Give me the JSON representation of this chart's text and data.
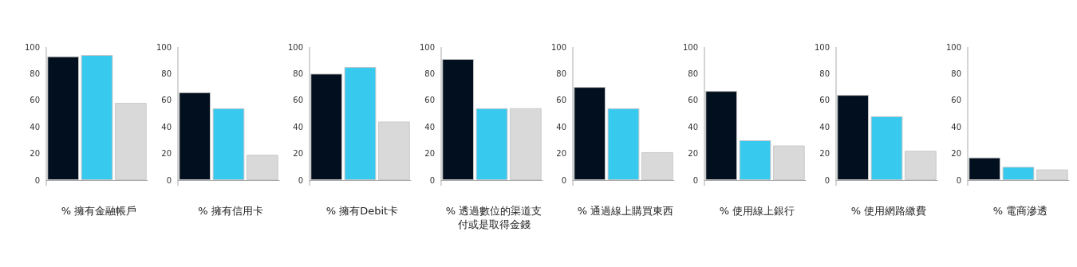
{
  "chart_data": [
    {
      "type": "bar",
      "xlabel": "% 擁有金融帳戶",
      "categories": [
        null,
        null,
        null
      ],
      "values": [
        93,
        94,
        58
      ],
      "colors": [
        "#020f1e",
        "#38c9ef",
        "#d9d9d9"
      ],
      "ylim": [
        0,
        100
      ],
      "yticks": [
        0,
        20,
        40,
        60,
        80,
        100
      ],
      "grid": false,
      "tick_labels": "y"
    },
    {
      "type": "bar",
      "xlabel": "% 擁有信用卡",
      "categories": [
        null,
        null,
        null
      ],
      "values": [
        66,
        54,
        19
      ],
      "colors": [
        "#020f1e",
        "#38c9ef",
        "#d9d9d9"
      ],
      "ylim": [
        0,
        100
      ],
      "yticks": [
        0,
        20,
        40,
        60,
        80,
        100
      ],
      "grid": false,
      "tick_labels": "y"
    },
    {
      "type": "bar",
      "xlabel": "% 擁有Debit卡",
      "categories": [
        null,
        null,
        null
      ],
      "values": [
        80,
        85,
        44
      ],
      "colors": [
        "#020f1e",
        "#38c9ef",
        "#d9d9d9"
      ],
      "ylim": [
        0,
        100
      ],
      "yticks": [
        0,
        20,
        40,
        60,
        80,
        100
      ],
      "grid": false,
      "tick_labels": "y"
    },
    {
      "type": "bar",
      "xlabel": "% 透過數位的渠道支付或是取得金錢",
      "categories": [
        null,
        null,
        null
      ],
      "values": [
        91,
        54,
        54
      ],
      "colors": [
        "#020f1e",
        "#38c9ef",
        "#d9d9d9"
      ],
      "ylim": [
        0,
        100
      ],
      "yticks": [
        0,
        20,
        40,
        60,
        80,
        100
      ],
      "grid": false,
      "tick_labels": "y"
    },
    {
      "type": "bar",
      "xlabel": "% 通過線上購買東西",
      "categories": [
        null,
        null,
        null
      ],
      "values": [
        70,
        54,
        21
      ],
      "colors": [
        "#020f1e",
        "#38c9ef",
        "#d9d9d9"
      ],
      "ylim": [
        0,
        100
      ],
      "yticks": [
        0,
        20,
        40,
        60,
        80,
        100
      ],
      "grid": false,
      "tick_labels": "y"
    },
    {
      "type": "bar",
      "xlabel": "% 使用線上銀行",
      "categories": [
        null,
        null,
        null
      ],
      "values": [
        67,
        30,
        26
      ],
      "colors": [
        "#020f1e",
        "#38c9ef",
        "#d9d9d9"
      ],
      "ylim": [
        0,
        100
      ],
      "yticks": [
        0,
        20,
        40,
        60,
        80,
        100
      ],
      "grid": false,
      "tick_labels": "y"
    },
    {
      "type": "bar",
      "xlabel": "% 使用網路繳費",
      "categories": [
        null,
        null,
        null
      ],
      "values": [
        64,
        48,
        22
      ],
      "colors": [
        "#020f1e",
        "#38c9ef",
        "#d9d9d9"
      ],
      "ylim": [
        0,
        100
      ],
      "yticks": [
        0,
        20,
        40,
        60,
        80,
        100
      ],
      "grid": false,
      "tick_labels": "y"
    },
    {
      "type": "bar",
      "xlabel": "% 電商滲透",
      "categories": [
        null,
        null,
        null
      ],
      "values": [
        17,
        10,
        8
      ],
      "colors": [
        "#020f1e",
        "#38c9ef",
        "#d9d9d9"
      ],
      "ylim": [
        0,
        100
      ],
      "yticks": [
        0,
        20,
        40,
        60,
        80,
        100
      ],
      "grid": false,
      "tick_labels": "y"
    }
  ]
}
